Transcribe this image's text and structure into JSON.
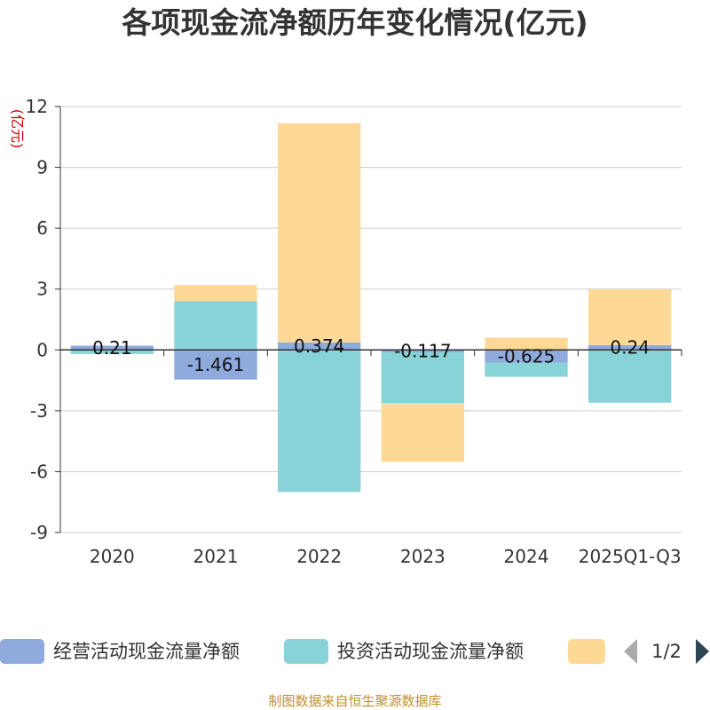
{
  "colors": {
    "operating": "#8faadc",
    "investing": "#87d3d8",
    "financing": "#fed996",
    "axis": "#333333",
    "grid": "#cccccc",
    "unit": "#cc0000",
    "footer": "#c0902a"
  },
  "legend": {
    "items": [
      "经营活动现金流量净额",
      "投资活动现金流量净额",
      ""
    ],
    "pager": "1/2",
    "prev_icon": "triangle-left-icon",
    "next_icon": "triangle-right-icon"
  },
  "footer": "制图数据来自恒生聚源数据库",
  "chart_data": {
    "type": "bar",
    "stacked": true,
    "title": "各项现金流净额历年变化情况(亿元)",
    "ylabel": "(亿元)",
    "xlabel": "",
    "ylim": [
      -9,
      12
    ],
    "yticks": [
      12,
      9,
      6,
      3,
      0,
      -3,
      -6,
      -9
    ],
    "categories": [
      "2020",
      "2021",
      "2022",
      "2023",
      "2024",
      "2025Q1-Q3"
    ],
    "series": [
      {
        "name": "经营活动现金流量净额",
        "color_key": "operating",
        "values": [
          0.21,
          -1.461,
          0.374,
          -0.117,
          -0.625,
          0.24
        ],
        "labels": [
          "0.21",
          "-1.461",
          "0.374",
          "-0.117",
          "-0.625",
          "0.24"
        ]
      },
      {
        "name": "投资活动现金流量净额",
        "color_key": "investing",
        "values": [
          -0.2,
          2.4,
          -7.0,
          -2.5,
          -0.7,
          -2.6
        ]
      },
      {
        "name": "",
        "color_key": "financing",
        "values": [
          0.0,
          0.8,
          10.8,
          -2.9,
          0.6,
          2.75
        ]
      }
    ],
    "grid": true,
    "legend_position": "bottom"
  }
}
